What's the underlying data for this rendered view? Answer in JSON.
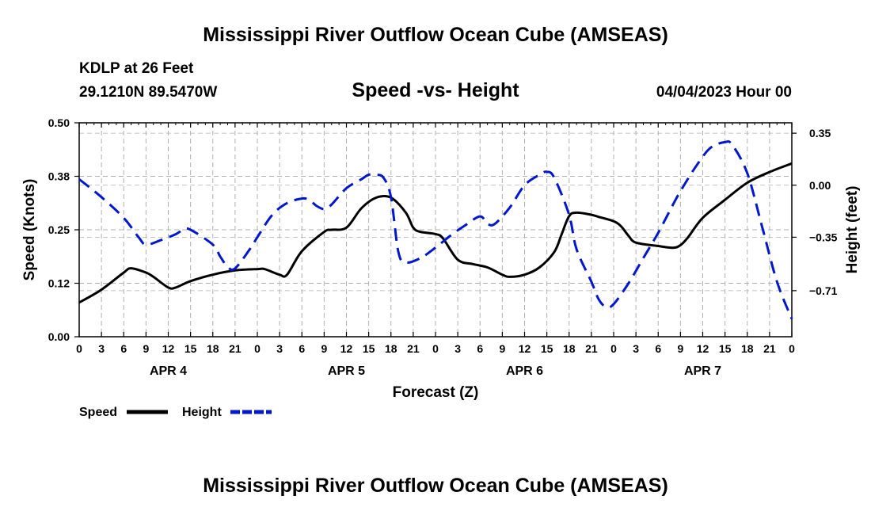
{
  "header": {
    "main_title": "Mississippi River Outflow Ocean Cube (AMSEAS)",
    "station": "KDLP at 26 Feet",
    "coordinates": "29.1210N  89.5470W",
    "date_hour": "04/04/2023 Hour 00",
    "bottom_title": "Mississippi River Outflow Ocean Cube (AMSEAS)"
  },
  "colors": {
    "speed": "#000000",
    "height": "#0018cc",
    "grid": "#b0b0b0"
  },
  "chart_data": {
    "type": "line",
    "title": "Speed -vs- Height",
    "xlabel": "Forecast (Z)",
    "ylabel_left": "Speed (Knots)",
    "ylabel_right": "Height (feet)",
    "x_range": [
      0,
      96
    ],
    "ylim_left": [
      0,
      0.5
    ],
    "ylim_right": [
      -1.02,
      0.42
    ],
    "yticks_left": [
      {
        "value": 0.0,
        "label": "0.00"
      },
      {
        "value": 0.125,
        "label": "0.12"
      },
      {
        "value": 0.25,
        "label": "0.25"
      },
      {
        "value": 0.375,
        "label": "0.38"
      },
      {
        "value": 0.5,
        "label": "0.50"
      }
    ],
    "yticks_right": [
      {
        "value": 0.35,
        "label": "0.35"
      },
      {
        "value": 0.0,
        "label": "0.00"
      },
      {
        "value": -0.35,
        "label": "−0.35"
      },
      {
        "value": -0.71,
        "label": "−0.71"
      }
    ],
    "xticks": [
      {
        "hour": 0,
        "label": "0"
      },
      {
        "hour": 3,
        "label": "3"
      },
      {
        "hour": 6,
        "label": "6"
      },
      {
        "hour": 9,
        "label": "9"
      },
      {
        "hour": 12,
        "label": "12"
      },
      {
        "hour": 15,
        "label": "15"
      },
      {
        "hour": 18,
        "label": "18"
      },
      {
        "hour": 21,
        "label": "21"
      },
      {
        "hour": 24,
        "label": "0"
      },
      {
        "hour": 27,
        "label": "3"
      },
      {
        "hour": 30,
        "label": "6"
      },
      {
        "hour": 33,
        "label": "9"
      },
      {
        "hour": 36,
        "label": "12"
      },
      {
        "hour": 39,
        "label": "15"
      },
      {
        "hour": 42,
        "label": "18"
      },
      {
        "hour": 45,
        "label": "21"
      },
      {
        "hour": 48,
        "label": "0"
      },
      {
        "hour": 51,
        "label": "3"
      },
      {
        "hour": 54,
        "label": "6"
      },
      {
        "hour": 57,
        "label": "9"
      },
      {
        "hour": 60,
        "label": "12"
      },
      {
        "hour": 63,
        "label": "15"
      },
      {
        "hour": 66,
        "label": "18"
      },
      {
        "hour": 69,
        "label": "21"
      },
      {
        "hour": 72,
        "label": "0"
      },
      {
        "hour": 75,
        "label": "3"
      },
      {
        "hour": 78,
        "label": "6"
      },
      {
        "hour": 81,
        "label": "9"
      },
      {
        "hour": 84,
        "label": "12"
      },
      {
        "hour": 87,
        "label": "15"
      },
      {
        "hour": 90,
        "label": "18"
      },
      {
        "hour": 93,
        "label": "21"
      },
      {
        "hour": 96,
        "label": "0"
      }
    ],
    "day_labels": [
      {
        "hour": 12,
        "label": "APR 4"
      },
      {
        "hour": 36,
        "label": "APR 5"
      },
      {
        "hour": 60,
        "label": "APR 6"
      },
      {
        "hour": 84,
        "label": "APR 7"
      }
    ],
    "legend": [
      {
        "label": "Speed",
        "series": "speed"
      },
      {
        "label": "Height",
        "series": "height"
      }
    ],
    "series": [
      {
        "name": "Speed",
        "axis": "left",
        "style": "solid",
        "points": [
          [
            0,
            0.08
          ],
          [
            3,
            0.11
          ],
          [
            6,
            0.15
          ],
          [
            7,
            0.16
          ],
          [
            9,
            0.15
          ],
          [
            10,
            0.14
          ],
          [
            12,
            0.115
          ],
          [
            13,
            0.115
          ],
          [
            15,
            0.13
          ],
          [
            18,
            0.145
          ],
          [
            21,
            0.155
          ],
          [
            24,
            0.158
          ],
          [
            25,
            0.158
          ],
          [
            27,
            0.145
          ],
          [
            28,
            0.145
          ],
          [
            30,
            0.2
          ],
          [
            33,
            0.245
          ],
          [
            34,
            0.25
          ],
          [
            36,
            0.255
          ],
          [
            38,
            0.3
          ],
          [
            40,
            0.325
          ],
          [
            42,
            0.325
          ],
          [
            44,
            0.29
          ],
          [
            45,
            0.255
          ],
          [
            46,
            0.245
          ],
          [
            48,
            0.24
          ],
          [
            49,
            0.23
          ],
          [
            51,
            0.18
          ],
          [
            53,
            0.17
          ],
          [
            55,
            0.162
          ],
          [
            57,
            0.145
          ],
          [
            58,
            0.14
          ],
          [
            60,
            0.145
          ],
          [
            62,
            0.162
          ],
          [
            64,
            0.198
          ],
          [
            65,
            0.24
          ],
          [
            66,
            0.282
          ],
          [
            67,
            0.29
          ],
          [
            69,
            0.285
          ],
          [
            70,
            0.28
          ],
          [
            72,
            0.27
          ],
          [
            73,
            0.258
          ],
          [
            74,
            0.236
          ],
          [
            75,
            0.22
          ],
          [
            78,
            0.212
          ],
          [
            80,
            0.208
          ],
          [
            81,
            0.214
          ],
          [
            82,
            0.232
          ],
          [
            84,
            0.278
          ],
          [
            87,
            0.32
          ],
          [
            90,
            0.36
          ],
          [
            93,
            0.385
          ],
          [
            96,
            0.405
          ]
        ]
      },
      {
        "name": "Height",
        "axis": "right",
        "style": "dashed",
        "points": [
          [
            0,
            0.04
          ],
          [
            3,
            -0.08
          ],
          [
            6,
            -0.22
          ],
          [
            8,
            -0.35
          ],
          [
            9,
            -0.4
          ],
          [
            11,
            -0.37
          ],
          [
            13,
            -0.33
          ],
          [
            14,
            -0.3
          ],
          [
            15,
            -0.3
          ],
          [
            18,
            -0.4
          ],
          [
            19,
            -0.48
          ],
          [
            20,
            -0.55
          ],
          [
            21,
            -0.56
          ],
          [
            23,
            -0.43
          ],
          [
            24,
            -0.35
          ],
          [
            26,
            -0.2
          ],
          [
            28,
            -0.12
          ],
          [
            30,
            -0.09
          ],
          [
            31,
            -0.1
          ],
          [
            32,
            -0.14
          ],
          [
            33,
            -0.16
          ],
          [
            34,
            -0.13
          ],
          [
            36,
            -0.02
          ],
          [
            38,
            0.04
          ],
          [
            39,
            0.07
          ],
          [
            40,
            0.07
          ],
          [
            41,
            0.05
          ],
          [
            42,
            -0.08
          ],
          [
            43,
            -0.45
          ],
          [
            44,
            -0.52
          ],
          [
            46,
            -0.49
          ],
          [
            48,
            -0.42
          ],
          [
            50,
            -0.34
          ],
          [
            52,
            -0.27
          ],
          [
            54,
            -0.21
          ],
          [
            55,
            -0.26
          ],
          [
            56,
            -0.26
          ],
          [
            58,
            -0.15
          ],
          [
            60,
            0.0
          ],
          [
            62,
            0.07
          ],
          [
            63,
            0.09
          ],
          [
            64,
            0.05
          ],
          [
            66,
            -0.2
          ],
          [
            67,
            -0.43
          ],
          [
            69,
            -0.65
          ],
          [
            70,
            -0.77
          ],
          [
            71,
            -0.82
          ],
          [
            72,
            -0.8
          ],
          [
            74,
            -0.66
          ],
          [
            76,
            -0.49
          ],
          [
            78,
            -0.32
          ],
          [
            80,
            -0.13
          ],
          [
            81,
            -0.04
          ],
          [
            83,
            0.12
          ],
          [
            85,
            0.25
          ],
          [
            87,
            0.29
          ],
          [
            88,
            0.27
          ],
          [
            90,
            0.08
          ],
          [
            92,
            -0.28
          ],
          [
            94,
            -0.65
          ],
          [
            96,
            -0.9
          ]
        ]
      }
    ]
  }
}
